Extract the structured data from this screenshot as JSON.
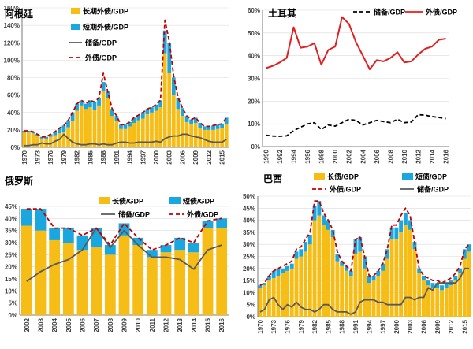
{
  "colors": {
    "long_term": "#F6BD16",
    "short_term": "#1AA7E0",
    "external_debt": "#C00000",
    "reserves": "#595959",
    "turkey_external": "#E02020",
    "turkey_reserves": "#000000",
    "grid": "#D9D9D9",
    "axis": "#595959"
  },
  "chart_data": [
    {
      "id": "argentina",
      "type": "bar",
      "stacked": true,
      "title": "阿根廷",
      "ylim": [
        0,
        160
      ],
      "yticks": [
        0,
        20,
        40,
        60,
        80,
        100,
        120,
        140,
        160
      ],
      "ytick_labels": [
        "0%",
        "20%",
        "40%",
        "60%",
        "80%",
        "100%",
        "120%",
        "140%",
        "160%"
      ],
      "x": [
        1970,
        1971,
        1972,
        1973,
        1974,
        1975,
        1976,
        1977,
        1978,
        1979,
        1980,
        1981,
        1982,
        1983,
        1984,
        1985,
        1986,
        1987,
        1988,
        1989,
        1990,
        1991,
        1992,
        1993,
        1994,
        1995,
        1996,
        1997,
        1998,
        1999,
        2000,
        2001,
        2002,
        2003,
        2004,
        2005,
        2006,
        2007,
        2008,
        2009,
        2010,
        2011,
        2012,
        2013,
        2014,
        2015,
        2016
      ],
      "xtick_labels": [
        "1970",
        "1973",
        "1976",
        "1979",
        "1982",
        "1985",
        "1988",
        "1991",
        "1994",
        "1997",
        "2000",
        "2003",
        "2006",
        "2009",
        "2012",
        "2015"
      ],
      "series": [
        {
          "name": "长期外债/GDP",
          "kind": "bar",
          "values": [
            17,
            17,
            16,
            13,
            10,
            10,
            12,
            14,
            16,
            18,
            23,
            30,
            42,
            48,
            44,
            46,
            43,
            48,
            64,
            56,
            36,
            30,
            21,
            21,
            24,
            28,
            31,
            33,
            38,
            40,
            42,
            46,
            108,
            85,
            60,
            44,
            36,
            29,
            27,
            28,
            22,
            20,
            20,
            20,
            21,
            22,
            27
          ]
        },
        {
          "name": "短期外债/GDP",
          "kind": "bar",
          "values": [
            2,
            2,
            2,
            2,
            2,
            2,
            3,
            4,
            6,
            7,
            8,
            10,
            8,
            6,
            6,
            8,
            9,
            9,
            11,
            8,
            8,
            6,
            5,
            5,
            5,
            6,
            6,
            7,
            6,
            6,
            7,
            8,
            26,
            35,
            20,
            13,
            9,
            7,
            5,
            6,
            6,
            4,
            4,
            5,
            5,
            5,
            7
          ]
        },
        {
          "name": "储备/GDP",
          "kind": "line",
          "values": [
            2,
            2,
            3,
            3,
            5,
            4,
            4,
            7,
            9,
            15,
            10,
            6,
            4,
            3,
            3,
            4,
            4,
            3,
            4,
            3,
            3,
            5,
            6,
            6,
            5,
            5,
            6,
            6,
            6,
            6,
            7,
            6,
            10,
            12,
            13,
            13,
            15,
            15,
            13,
            12,
            11,
            9,
            7,
            6,
            6,
            6,
            9
          ]
        },
        {
          "name": "外债/GDP",
          "kind": "dashed",
          "values": [
            19,
            19,
            18,
            15,
            12,
            12,
            15,
            18,
            22,
            25,
            31,
            40,
            50,
            54,
            50,
            54,
            52,
            57,
            85,
            64,
            44,
            36,
            26,
            26,
            29,
            34,
            37,
            40,
            44,
            46,
            49,
            54,
            146,
            122,
            82,
            57,
            45,
            36,
            32,
            34,
            28,
            24,
            24,
            25,
            26,
            27,
            34
          ]
        }
      ]
    },
    {
      "id": "turkey",
      "type": "line",
      "title": "土耳其",
      "ylim": [
        0,
        60
      ],
      "yticks": [
        0,
        10,
        20,
        30,
        40,
        50,
        60
      ],
      "ytick_labels": [
        "0%",
        "10%",
        "20%",
        "30%",
        "40%",
        "50%",
        "60%"
      ],
      "x": [
        1990,
        1991,
        1992,
        1993,
        1994,
        1995,
        1996,
        1997,
        1998,
        1999,
        2000,
        2001,
        2002,
        2003,
        2004,
        2005,
        2006,
        2007,
        2008,
        2009,
        2010,
        2011,
        2012,
        2013,
        2014,
        2015,
        2016
      ],
      "xtick_labels": [
        "1990",
        "1992",
        "1994",
        "1996",
        "1998",
        "2000",
        "2002",
        "2004",
        "2006",
        "2008",
        "2010",
        "2012",
        "2014",
        "2016"
      ],
      "series": [
        {
          "name": "储备/GDP",
          "kind": "dashed",
          "values": [
            5,
            4.6,
            4.5,
            4.7,
            7,
            8.5,
            10,
            10.5,
            7.5,
            9.5,
            9,
            10.5,
            12,
            11.5,
            9.5,
            10.5,
            11.5,
            11,
            10.5,
            12,
            10.5,
            10.8,
            14,
            13.8,
            13.2,
            12.8,
            12.3
          ]
        },
        {
          "name": "外债/GDP",
          "kind": "line",
          "values": [
            34.5,
            35.5,
            37,
            39,
            52.5,
            43.5,
            44,
            45.5,
            36,
            42.5,
            44,
            57,
            54,
            46,
            40,
            34,
            38,
            37.5,
            39,
            41.5,
            37,
            37.5,
            40.5,
            43,
            44,
            47,
            47.5
          ]
        }
      ]
    },
    {
      "id": "russia",
      "type": "bar",
      "stacked": true,
      "title": "俄罗斯",
      "ylim": [
        0,
        45
      ],
      "yticks": [
        0,
        5,
        10,
        15,
        20,
        25,
        30,
        35,
        40,
        45
      ],
      "ytick_labels": [
        "0%",
        "5%",
        "10%",
        "15%",
        "20%",
        "25%",
        "30%",
        "35%",
        "40%",
        "45%"
      ],
      "x": [
        2002,
        2003,
        2004,
        2005,
        2006,
        2007,
        2008,
        2009,
        2010,
        2011,
        2012,
        2013,
        2014,
        2015,
        2016
      ],
      "xtick_labels": [
        "2002",
        "2003",
        "2004",
        "2005",
        "2006",
        "2007",
        "2008",
        "2009",
        "2010",
        "2011",
        "2012",
        "2013",
        "2014",
        "2015",
        "2016"
      ],
      "series": [
        {
          "name": "长债/GDP",
          "kind": "bar",
          "values": [
            37,
            35,
            31,
            30,
            27,
            28,
            25,
            33,
            29,
            24,
            26,
            27,
            26,
            36,
            36
          ]
        },
        {
          "name": "短债/GDP",
          "kind": "bar",
          "values": [
            7,
            9,
            5,
            6,
            6,
            8,
            4,
            5,
            3,
            3,
            3,
            5,
            4,
            3,
            4
          ]
        },
        {
          "name": "储备/GDP",
          "kind": "line",
          "values": [
            14,
            18,
            21,
            23,
            27,
            36,
            28,
            35,
            29,
            24,
            24,
            23,
            19,
            27,
            29
          ]
        },
        {
          "name": "外债/GDP",
          "kind": "dashed",
          "values": [
            44,
            44,
            36,
            36,
            33,
            36,
            29,
            38,
            32,
            27,
            29,
            32,
            30,
            39,
            40
          ]
        }
      ]
    },
    {
      "id": "brazil",
      "type": "bar",
      "stacked": true,
      "title": "巴西",
      "ylim": [
        0,
        50
      ],
      "yticks": [
        0,
        5,
        10,
        15,
        20,
        25,
        30,
        35,
        40,
        45,
        50
      ],
      "ytick_labels": [
        "0%",
        "5%",
        "10%",
        "15%",
        "20%",
        "25%",
        "30%",
        "35%",
        "40%",
        "45%",
        "50%"
      ],
      "x": [
        1970,
        1971,
        1972,
        1973,
        1974,
        1975,
        1976,
        1977,
        1978,
        1979,
        1980,
        1981,
        1982,
        1983,
        1984,
        1985,
        1986,
        1987,
        1988,
        1989,
        1990,
        1991,
        1992,
        1993,
        1994,
        1995,
        1996,
        1997,
        1998,
        1999,
        2000,
        2001,
        2002,
        2003,
        2004,
        2005,
        2006,
        2007,
        2008,
        2009,
        2010,
        2011,
        2012,
        2013,
        2014,
        2015,
        2016
      ],
      "xtick_labels": [
        "1970",
        "1973",
        "1976",
        "1979",
        "1982",
        "1985",
        "1988",
        "1991",
        "1994",
        "1997",
        "2000",
        "2003",
        "2006",
        "2009",
        "2012",
        "2015"
      ],
      "series": [
        {
          "name": "长债/GDP",
          "kind": "bar",
          "values": [
            12,
            13,
            15,
            16,
            17,
            18,
            19,
            20,
            24,
            25,
            27,
            30,
            40,
            42,
            38,
            36,
            33,
            23,
            21,
            19,
            17,
            26,
            27,
            20,
            14,
            15,
            17,
            19,
            24,
            32,
            32,
            35,
            38,
            36,
            28,
            18,
            15,
            13,
            12,
            12,
            11,
            12,
            13,
            15,
            18,
            24,
            27
          ]
        },
        {
          "name": "短债/GDP",
          "kind": "bar",
          "values": [
            1,
            1,
            2,
            3,
            3,
            2,
            2,
            2,
            3,
            3,
            4,
            4,
            6,
            6,
            4,
            4,
            3,
            3,
            2,
            2,
            2,
            6,
            6,
            5,
            3,
            2,
            2,
            3,
            4,
            5,
            5,
            5,
            5,
            4,
            3,
            2,
            2,
            2,
            2,
            2,
            2,
            2,
            2,
            2,
            2,
            4,
            3
          ]
        },
        {
          "name": "外债/GDP",
          "kind": "dashed",
          "values": [
            13,
            14,
            17,
            19,
            20,
            21,
            22,
            23,
            28,
            29,
            32,
            35,
            48,
            48,
            43,
            40,
            36,
            27,
            23,
            21,
            19,
            32,
            33,
            25,
            17,
            17,
            19,
            22,
            28,
            38,
            38,
            42,
            45,
            42,
            31,
            20,
            17,
            16,
            15,
            15,
            14,
            15,
            16,
            18,
            21,
            28,
            30
          ]
        },
        {
          "name": "储备/GDP",
          "kind": "line",
          "values": [
            2,
            3,
            7,
            8,
            5,
            3,
            5,
            4,
            6,
            4,
            3,
            3,
            2,
            3,
            5,
            5,
            3,
            2,
            2,
            2,
            1,
            2,
            6,
            7,
            7,
            7,
            6,
            6,
            5,
            5,
            5,
            5,
            8,
            8,
            7,
            8,
            8,
            12,
            11,
            14,
            14,
            14,
            14,
            14,
            16,
            20,
            20
          ]
        }
      ]
    }
  ]
}
